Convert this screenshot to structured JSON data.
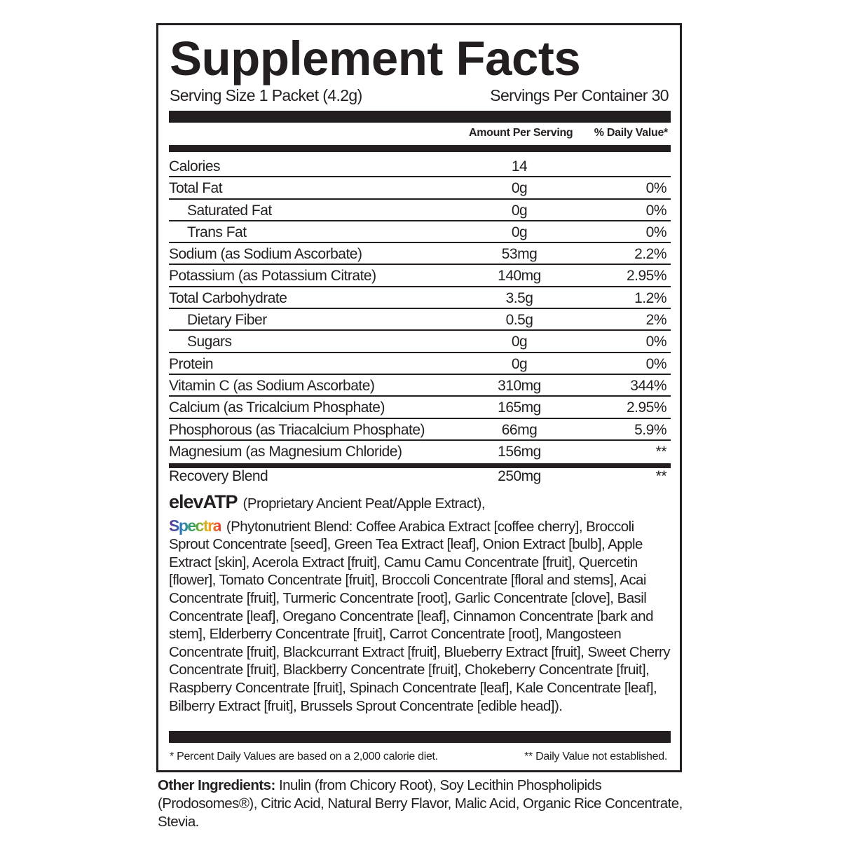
{
  "title": "Supplement Facts",
  "serving_size": "Serving Size 1 Packet (4.2g)",
  "servings_per_container": "Servings Per Container 30",
  "header": {
    "amount": "Amount Per Serving",
    "dv": "% Daily Value*"
  },
  "rows": [
    {
      "name": "Calories",
      "amount": "14",
      "dv": "",
      "indent": false
    },
    {
      "name": "Total Fat",
      "amount": "0g",
      "dv": "0%",
      "indent": false
    },
    {
      "name": "Saturated Fat",
      "amount": "0g",
      "dv": "0%",
      "indent": true
    },
    {
      "name": "Trans Fat",
      "amount": "0g",
      "dv": "0%",
      "indent": true
    },
    {
      "name": "Sodium (as Sodium Ascorbate)",
      "amount": "53mg",
      "dv": "2.2%",
      "indent": false
    },
    {
      "name": "Potassium (as Potassium Citrate)",
      "amount": "140mg",
      "dv": "2.95%",
      "indent": false
    },
    {
      "name": "Total Carbohydrate",
      "amount": "3.5g",
      "dv": "1.2%",
      "indent": false
    },
    {
      "name": "Dietary Fiber",
      "amount": "0.5g",
      "dv": "2%",
      "indent": true
    },
    {
      "name": "Sugars",
      "amount": "0g",
      "dv": "0%",
      "indent": true
    },
    {
      "name": "Protein",
      "amount": "0g",
      "dv": "0%",
      "indent": false
    },
    {
      "name": "Vitamin C (as Sodium Ascorbate)",
      "amount": "310mg",
      "dv": "344%",
      "indent": false
    },
    {
      "name": "Calcium (as Tricalcium Phosphate)",
      "amount": "165mg",
      "dv": "2.95%",
      "indent": false
    },
    {
      "name": "Phosphorous (as Triacalcium Phosphate)",
      "amount": "66mg",
      "dv": "5.9%",
      "indent": false
    },
    {
      "name": "Magnesium (as Magnesium Chloride)",
      "amount": "156mg",
      "dv": "**",
      "indent": false
    }
  ],
  "blend": {
    "name": "Recovery Blend",
    "amount": "250mg",
    "dv": "**",
    "logo1": "elevATP",
    "text1": "(Proprietary Ancient Peat/Apple Extract),",
    "logo2": "Spectra",
    "text2": "(Phytonutrient Blend: Coffee Arabica Extract [coffee cherry], Broccoli Sprout Concentrate [seed], Green Tea Extract [leaf], Onion Extract [bulb], Apple Extract [skin], Acerola Extract [fruit], Camu Camu Concentrate [fruit], Quercetin [flower], Tomato Concentrate [fruit], Broccoli Concentrate [floral and stems], Acai Concentrate [fruit], Turmeric Concentrate [root], Garlic Concentrate [clove], Basil Concentrate [leaf], Oregano Concentrate [leaf], Cinnamon Concentrate [bark and stem], Elderberry Concentrate [fruit], Carrot Concentrate [root], Mangosteen Concentrate [fruit], Blackcurrant Extract [fruit], Blueberry Extract [fruit], Sweet Cherry Concentrate [fruit], Blackberry Concentrate [fruit], Chokeberry Concentrate [fruit], Raspberry Concentrate [fruit], Spinach Concentrate [leaf], Kale Concentrate [leaf], Bilberry Extract [fruit], Brussels Sprout Concentrate [edible head])."
  },
  "footnotes": {
    "left": "* Percent Daily Values are based on a 2,000 calorie diet.",
    "right": "** Daily Value not established."
  },
  "other": {
    "label": "Other Ingredients:",
    "text": "Inulin (from Chicory Root), Soy Lecithin Phospholipids (Prodosomes®), Citric Acid, Natural Berry Flavor, Malic Acid, Organic Rice Concentrate, Stevia."
  }
}
